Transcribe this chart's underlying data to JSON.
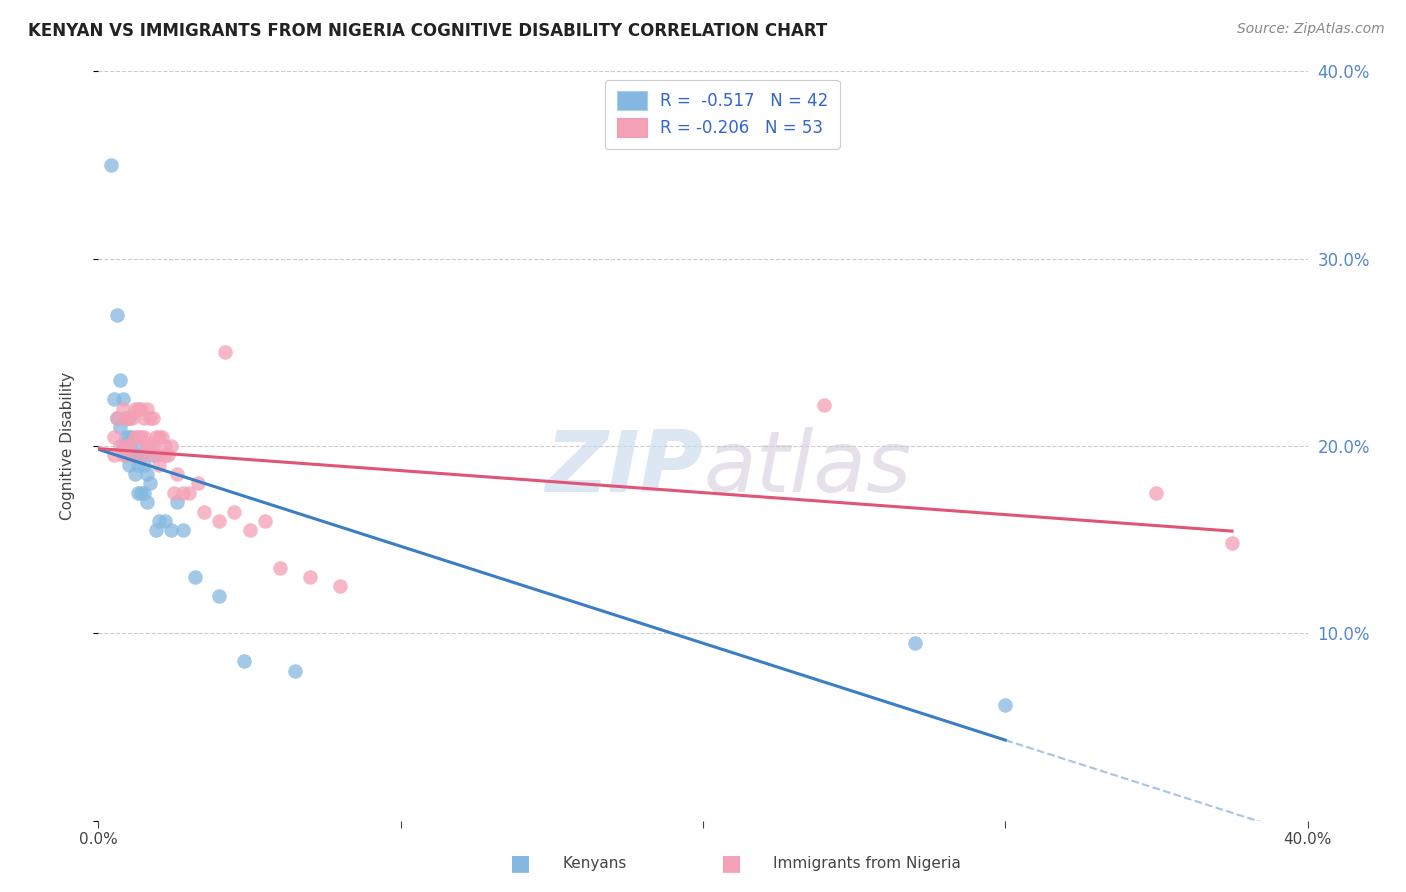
{
  "title": "KENYAN VS IMMIGRANTS FROM NIGERIA COGNITIVE DISABILITY CORRELATION CHART",
  "source": "Source: ZipAtlas.com",
  "ylabel": "Cognitive Disability",
  "xlim": [
    0.0,
    0.4
  ],
  "ylim": [
    0.0,
    0.4
  ],
  "kenyan_R": -0.517,
  "kenyan_N": 42,
  "nigeria_R": -0.206,
  "nigeria_N": 53,
  "kenyan_color": "#85b8e0",
  "nigeria_color": "#f4a0b5",
  "kenyan_line_color": "#3a7ec4",
  "nigeria_line_color": "#e05575",
  "watermark_zip": "ZIP",
  "watermark_atlas": "atlas",
  "legend_label_blue": "R =  -0.517   N = 42",
  "legend_label_pink": "R = -0.206   N = 53",
  "kenyan_x": [
    0.004,
    0.005,
    0.006,
    0.006,
    0.007,
    0.007,
    0.008,
    0.008,
    0.009,
    0.009,
    0.009,
    0.01,
    0.01,
    0.01,
    0.01,
    0.011,
    0.011,
    0.012,
    0.012,
    0.013,
    0.013,
    0.013,
    0.014,
    0.014,
    0.015,
    0.015,
    0.016,
    0.016,
    0.017,
    0.018,
    0.019,
    0.02,
    0.022,
    0.024,
    0.026,
    0.028,
    0.032,
    0.04,
    0.048,
    0.065,
    0.27,
    0.3
  ],
  "kenyan_y": [
    0.35,
    0.225,
    0.27,
    0.215,
    0.235,
    0.21,
    0.225,
    0.2,
    0.215,
    0.205,
    0.195,
    0.215,
    0.205,
    0.2,
    0.19,
    0.205,
    0.195,
    0.195,
    0.185,
    0.2,
    0.19,
    0.175,
    0.195,
    0.175,
    0.19,
    0.175,
    0.185,
    0.17,
    0.18,
    0.195,
    0.155,
    0.16,
    0.16,
    0.155,
    0.17,
    0.155,
    0.13,
    0.12,
    0.085,
    0.08,
    0.095,
    0.062
  ],
  "nigeria_x": [
    0.005,
    0.005,
    0.006,
    0.007,
    0.008,
    0.008,
    0.009,
    0.009,
    0.01,
    0.01,
    0.011,
    0.011,
    0.012,
    0.012,
    0.013,
    0.013,
    0.014,
    0.014,
    0.015,
    0.015,
    0.015,
    0.016,
    0.016,
    0.017,
    0.017,
    0.018,
    0.018,
    0.019,
    0.019,
    0.02,
    0.02,
    0.021,
    0.022,
    0.022,
    0.023,
    0.024,
    0.025,
    0.026,
    0.028,
    0.03,
    0.033,
    0.035,
    0.04,
    0.042,
    0.045,
    0.05,
    0.055,
    0.06,
    0.07,
    0.08,
    0.24,
    0.35,
    0.375
  ],
  "nigeria_y": [
    0.205,
    0.195,
    0.215,
    0.2,
    0.22,
    0.195,
    0.215,
    0.2,
    0.215,
    0.2,
    0.215,
    0.195,
    0.22,
    0.205,
    0.22,
    0.205,
    0.22,
    0.205,
    0.215,
    0.205,
    0.195,
    0.22,
    0.2,
    0.215,
    0.2,
    0.215,
    0.2,
    0.205,
    0.195,
    0.205,
    0.19,
    0.205,
    0.2,
    0.195,
    0.195,
    0.2,
    0.175,
    0.185,
    0.175,
    0.175,
    0.18,
    0.165,
    0.16,
    0.25,
    0.165,
    0.155,
    0.16,
    0.135,
    0.13,
    0.125,
    0.222,
    0.175,
    0.148
  ],
  "background_color": "#ffffff",
  "grid_color": "#cccccc"
}
